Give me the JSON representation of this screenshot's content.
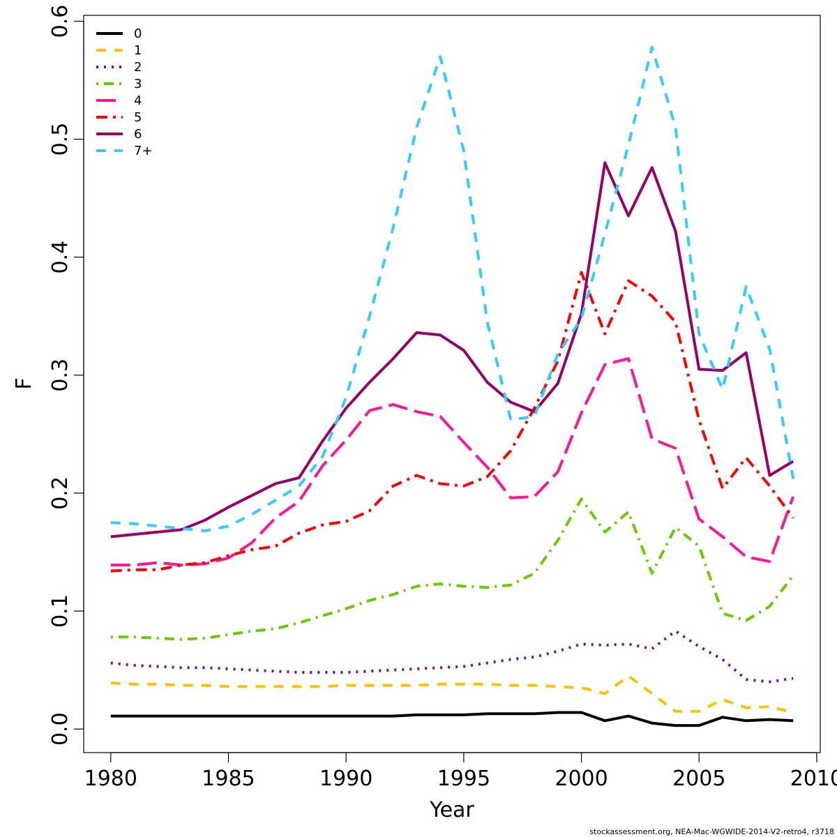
{
  "chart_data": {
    "type": "line",
    "xlabel": "Year",
    "ylabel": "F",
    "xlim": [
      1978.85,
      2010.15
    ],
    "ylim": [
      -0.02,
      0.605
    ],
    "xticks": [
      1980,
      1985,
      1990,
      1995,
      2000,
      2005,
      2010
    ],
    "yticks": [
      0.0,
      0.1,
      0.2,
      0.3,
      0.4,
      0.5,
      0.6
    ],
    "xtick_labels": [
      "1980",
      "1985",
      "1990",
      "1995",
      "2000",
      "2005",
      "2010"
    ],
    "ytick_labels": [
      "0.0",
      "0.1",
      "0.2",
      "0.3",
      "0.4",
      "0.5",
      "0.6"
    ],
    "grid": false,
    "legend_position": "top-left",
    "x": [
      1980,
      1981,
      1982,
      1983,
      1984,
      1985,
      1986,
      1987,
      1988,
      1989,
      1990,
      1991,
      1992,
      1993,
      1994,
      1995,
      1996,
      1997,
      1998,
      1999,
      2000,
      2001,
      2002,
      2003,
      2004,
      2005,
      2006,
      2007,
      2008,
      2009
    ],
    "series": [
      {
        "name": "0",
        "color": "#000000",
        "dash": "",
        "values": [
          0.011,
          0.011,
          0.011,
          0.011,
          0.011,
          0.011,
          0.011,
          0.011,
          0.011,
          0.011,
          0.011,
          0.011,
          0.011,
          0.012,
          0.012,
          0.012,
          0.013,
          0.013,
          0.013,
          0.014,
          0.014,
          0.007,
          0.011,
          0.005,
          0.003,
          0.003,
          0.01,
          0.007,
          0.008,
          0.007
        ]
      },
      {
        "name": "1",
        "color": "#FFC000",
        "dash": "14 12",
        "values": [
          0.039,
          0.038,
          0.038,
          0.037,
          0.037,
          0.036,
          0.036,
          0.036,
          0.036,
          0.036,
          0.037,
          0.037,
          0.037,
          0.037,
          0.038,
          0.038,
          0.038,
          0.037,
          0.037,
          0.036,
          0.035,
          0.03,
          0.045,
          0.03,
          0.015,
          0.015,
          0.025,
          0.018,
          0.019,
          0.014
        ]
      },
      {
        "name": "2",
        "color": "#6A0DAD",
        "dash": "3 8",
        "values": [
          0.056,
          0.054,
          0.053,
          0.052,
          0.052,
          0.051,
          0.05,
          0.049,
          0.048,
          0.048,
          0.048,
          0.049,
          0.05,
          0.051,
          0.052,
          0.053,
          0.056,
          0.059,
          0.061,
          0.066,
          0.072,
          0.071,
          0.072,
          0.068,
          0.083,
          0.07,
          0.059,
          0.042,
          0.04,
          0.043
        ]
      },
      {
        "name": "3",
        "color": "#66CC00",
        "dash": "3 8 14 8",
        "values": [
          0.078,
          0.078,
          0.077,
          0.076,
          0.077,
          0.08,
          0.083,
          0.085,
          0.09,
          0.096,
          0.102,
          0.109,
          0.114,
          0.121,
          0.123,
          0.121,
          0.12,
          0.122,
          0.132,
          0.16,
          0.195,
          0.167,
          0.184,
          0.132,
          0.171,
          0.155,
          0.098,
          0.092,
          0.104,
          0.13
        ]
      },
      {
        "name": "4",
        "color": "#FF1493",
        "dash": "28 10",
        "values": [
          0.139,
          0.139,
          0.141,
          0.139,
          0.14,
          0.145,
          0.158,
          0.179,
          0.193,
          0.223,
          0.245,
          0.27,
          0.275,
          0.269,
          0.265,
          0.243,
          0.222,
          0.196,
          0.197,
          0.218,
          0.268,
          0.309,
          0.314,
          0.246,
          0.238,
          0.178,
          0.163,
          0.146,
          0.142,
          0.197
        ]
      },
      {
        "name": "5",
        "color": "#FF0000",
        "dash": "16 8 4 8",
        "values": [
          0.134,
          0.135,
          0.135,
          0.139,
          0.141,
          0.147,
          0.152,
          0.155,
          0.166,
          0.173,
          0.176,
          0.185,
          0.206,
          0.215,
          0.208,
          0.206,
          0.214,
          0.236,
          0.272,
          0.312,
          0.387,
          0.335,
          0.38,
          0.367,
          0.345,
          0.262,
          0.204,
          0.23,
          0.206,
          0.179
        ]
      },
      {
        "name": "6",
        "color": "#990066",
        "dash": "",
        "values": [
          0.163,
          0.165,
          0.167,
          0.169,
          0.177,
          0.188,
          0.198,
          0.208,
          0.213,
          0.244,
          0.272,
          0.294,
          0.314,
          0.336,
          0.334,
          0.321,
          0.294,
          0.277,
          0.269,
          0.293,
          0.352,
          0.48,
          0.435,
          0.476,
          0.422,
          0.305,
          0.304,
          0.319,
          0.215,
          0.227
        ]
      },
      {
        "name": "7+",
        "color": "#33CCFF",
        "dash": "14 12",
        "values": [
          0.175,
          0.174,
          0.172,
          0.17,
          0.168,
          0.172,
          0.182,
          0.194,
          0.206,
          0.231,
          0.281,
          0.35,
          0.425,
          0.51,
          0.57,
          0.49,
          0.345,
          0.262,
          0.265,
          0.318,
          0.348,
          0.42,
          0.495,
          0.578,
          0.51,
          0.335,
          0.288,
          0.375,
          0.322,
          0.212
        ]
      }
    ],
    "annotations": [
      "stockassessment.org, NEA-Mac-WGWIDE-2014-V2-retro4, r3718"
    ]
  }
}
